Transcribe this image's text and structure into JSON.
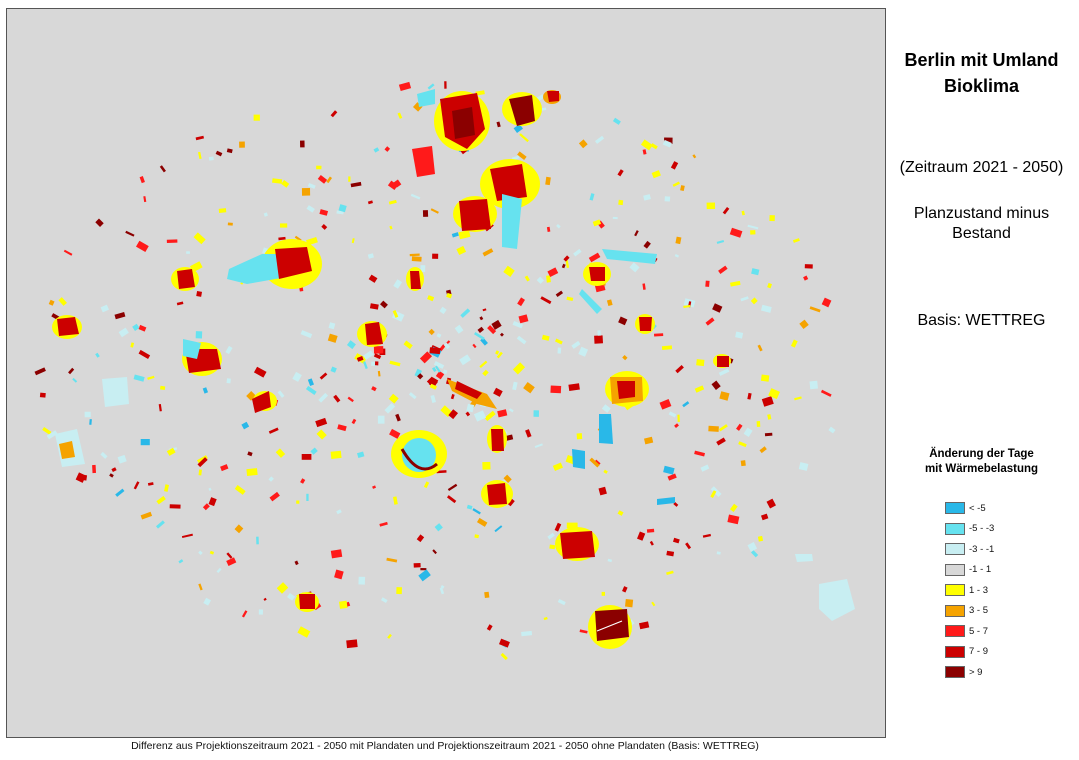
{
  "title": [
    "Berlin mit Umland",
    "Bioklima"
  ],
  "period": "(Zeitraum 2021 - 2050)",
  "plan_state": [
    "Planzustand minus",
    "Bestand"
  ],
  "basis": "Basis: WETTREG",
  "legend": {
    "title": [
      "Änderung der Tage",
      "mit Wärmebelastung"
    ],
    "items": [
      {
        "label": "< -5",
        "color": "#29b8e8"
      },
      {
        "label": "-5 - -3",
        "color": "#66e2ef"
      },
      {
        "label": "-3 - -1",
        "color": "#c8eef2"
      },
      {
        "label": "-1 - 1",
        "color": "#d8d8d8"
      },
      {
        "label": "1 - 3",
        "color": "#ffff00"
      },
      {
        "label": "3 - 5",
        "color": "#f5a300"
      },
      {
        "label": "5 - 7",
        "color": "#ff1a1a"
      },
      {
        "label": "7 - 9",
        "color": "#cc0000"
      },
      {
        "label": "> 9",
        "color": "#8b0000"
      }
    ]
  },
  "caption": "Differenz aus Projektionszeitraum 2021 - 2050 mit Plandaten  und Projektionszeitraum 2021 - 2050 ohne Plandaten (Basis: WETTREG)"
}
